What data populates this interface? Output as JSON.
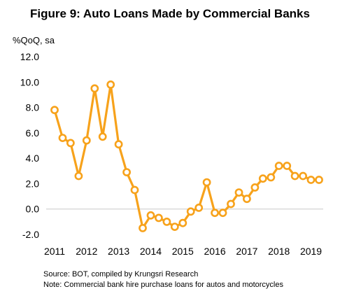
{
  "chart_data": {
    "type": "line",
    "title": "Figure 9: Auto Loans Made by Commercial Banks",
    "ylabel": "%QoQ, sa",
    "xlabel": "",
    "ylim": [
      -2.0,
      12.0
    ],
    "y_ticks": [
      "12.0",
      "10.0",
      "8.0",
      "6.0",
      "4.0",
      "2.0",
      "0.0",
      "-2.0"
    ],
    "y_tick_values": [
      12,
      10,
      8,
      6,
      4,
      2,
      0,
      -2
    ],
    "x_ticks": [
      "2011",
      "2012",
      "2013",
      "2014",
      "2015",
      "2016",
      "2017",
      "2018",
      "2019"
    ],
    "x_tick_values": [
      2011,
      2012,
      2013,
      2014,
      2015,
      2016,
      2017,
      2018,
      2019
    ],
    "xlim": [
      2011,
      2019.25
    ],
    "grid": false,
    "legend": "none",
    "series_color": "#F7A21B",
    "series": [
      {
        "x": [
          2011.0,
          2011.25,
          2011.5,
          2011.75,
          2012.0,
          2012.25,
          2012.5,
          2012.75,
          2013.0,
          2013.25,
          2013.5,
          2013.75,
          2014.0,
          2014.25,
          2014.5,
          2014.75,
          2015.0,
          2015.25,
          2015.5,
          2015.75,
          2016.0,
          2016.25,
          2016.5,
          2016.75,
          2017.0,
          2017.25,
          2017.5,
          2017.75,
          2018.0,
          2018.25,
          2018.5,
          2018.75,
          2019.0,
          2019.25
        ],
        "values": [
          7.8,
          5.6,
          5.2,
          2.6,
          5.4,
          9.5,
          5.7,
          9.8,
          5.1,
          2.9,
          1.5,
          -1.5,
          -0.5,
          -0.7,
          -1.0,
          -1.4,
          -1.1,
          -0.2,
          0.1,
          2.1,
          -0.3,
          -0.3,
          0.4,
          1.3,
          0.8,
          1.7,
          2.4,
          2.5,
          3.4,
          3.4,
          2.6,
          2.6,
          2.3,
          2.3
        ]
      }
    ]
  },
  "notes": {
    "source": "Source: BOT, compiled by Krungsri Research",
    "note": "Note: Commercial bank hire purchase loans for autos and motorcycles"
  }
}
